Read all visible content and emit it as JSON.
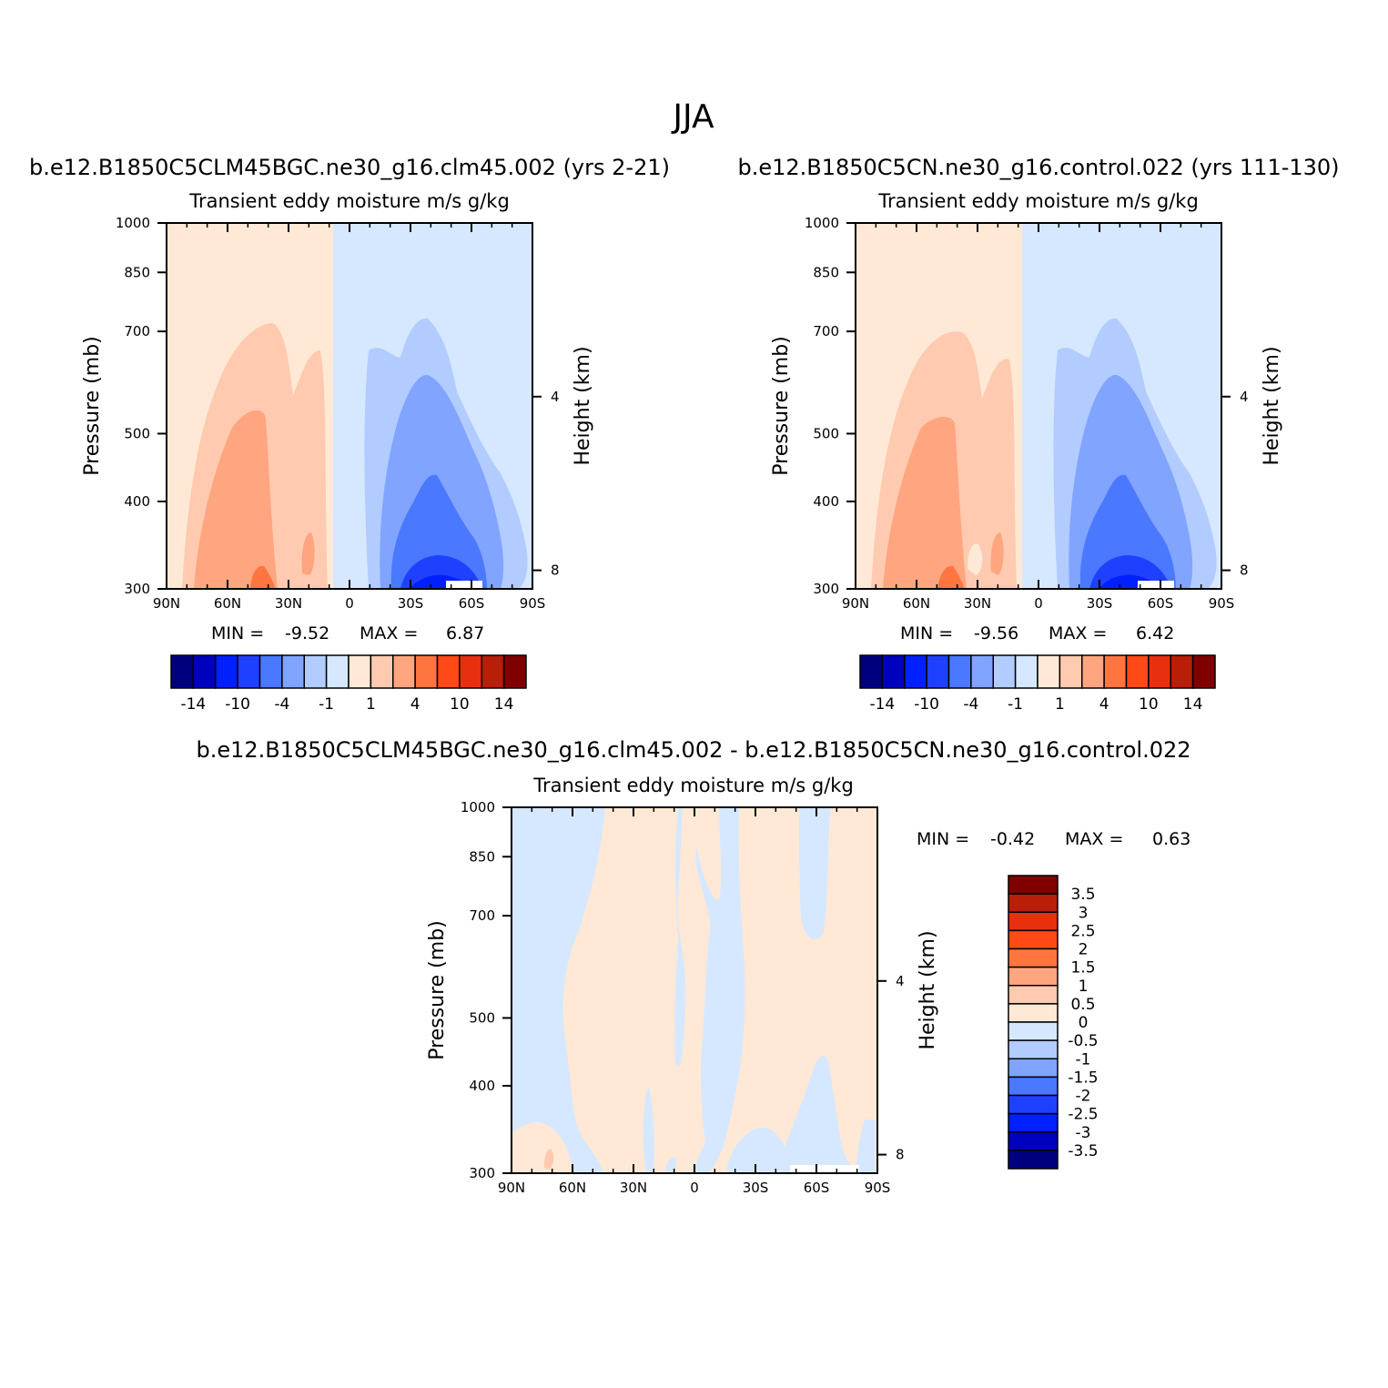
{
  "figure": {
    "title": "JJA"
  },
  "colors": {
    "model_levels": [
      "#00007f",
      "#0000bf",
      "#0020ff",
      "#2040ff",
      "#4a78ff",
      "#80a4ff",
      "#b3ccff",
      "#d6e8ff",
      "#ffe9d6",
      "#ffcab0",
      "#ffa580",
      "#ff7540",
      "#ff4a18",
      "#e83010",
      "#b81e08",
      "#800000"
    ],
    "diff_levels": [
      "#00007f",
      "#0000bf",
      "#0020ff",
      "#2040ff",
      "#4a78ff",
      "#80a4ff",
      "#b3ccff",
      "#d6e8ff",
      "#ffe9d6",
      "#ffcab0",
      "#ffa580",
      "#ff7540",
      "#ff4a18",
      "#e83010",
      "#b81e08",
      "#800000"
    ]
  },
  "chart_data": [
    {
      "type": "heatmap",
      "panel_id": "case",
      "title": "b.e12.B1850C5CLM45BGC.ne30_g16.clm45.002 (yrs 2-21)",
      "subtitle": "Transient eddy moisture m/s g/kg",
      "ylabel": "Pressure (mb)",
      "y2label": "Height (km)",
      "xticks": [
        "90N",
        "60N",
        "30N",
        "0",
        "30S",
        "60S",
        "90S"
      ],
      "yticks": [
        300,
        400,
        500,
        700,
        850,
        1000
      ],
      "y2ticks": [
        8,
        4
      ],
      "min_label": "MIN =",
      "min_value": "-9.52",
      "max_label": "MAX =",
      "max_value": "6.87",
      "colorbar_labels": [
        "-14",
        "-10",
        "-4",
        "-1",
        "1",
        "4",
        "10",
        "14"
      ],
      "xlim": [
        90,
        -90
      ],
      "ylim": [
        1000,
        300
      ]
    },
    {
      "type": "heatmap",
      "panel_id": "control",
      "title": "b.e12.B1850C5CN.ne30_g16.control.022 (yrs 111-130)",
      "subtitle": "Transient eddy moisture m/s g/kg",
      "ylabel": "Pressure (mb)",
      "y2label": "Height (km)",
      "xticks": [
        "90N",
        "60N",
        "30N",
        "0",
        "30S",
        "60S",
        "90S"
      ],
      "yticks": [
        300,
        400,
        500,
        700,
        850,
        1000
      ],
      "y2ticks": [
        8,
        4
      ],
      "min_label": "MIN =",
      "min_value": "-9.56",
      "max_label": "MAX =",
      "max_value": "6.42",
      "colorbar_labels": [
        "-14",
        "-10",
        "-4",
        "-1",
        "1",
        "4",
        "10",
        "14"
      ],
      "xlim": [
        90,
        -90
      ],
      "ylim": [
        1000,
        300
      ]
    },
    {
      "type": "heatmap",
      "panel_id": "difference",
      "title": "b.e12.B1850C5CLM45BGC.ne30_g16.clm45.002 - b.e12.B1850C5CN.ne30_g16.control.022",
      "subtitle": "Transient eddy moisture m/s g/kg",
      "ylabel": "Pressure (mb)",
      "y2label": "Height (km)",
      "xticks": [
        "90N",
        "60N",
        "30N",
        "0",
        "30S",
        "60S",
        "90S"
      ],
      "yticks": [
        300,
        400,
        500,
        700,
        850,
        1000
      ],
      "y2ticks": [
        8,
        4
      ],
      "min_label": "MIN =",
      "min_value": "-0.42",
      "max_label": "MAX =",
      "max_value": "0.63",
      "colorbar_labels": [
        "3.5",
        "3",
        "2.5",
        "2",
        "1.5",
        "1",
        "0.5",
        "0",
        "-0.5",
        "-1",
        "-1.5",
        "-2",
        "-2.5",
        "-3",
        "-3.5"
      ],
      "xlim": [
        90,
        -90
      ],
      "ylim": [
        1000,
        300
      ]
    }
  ]
}
